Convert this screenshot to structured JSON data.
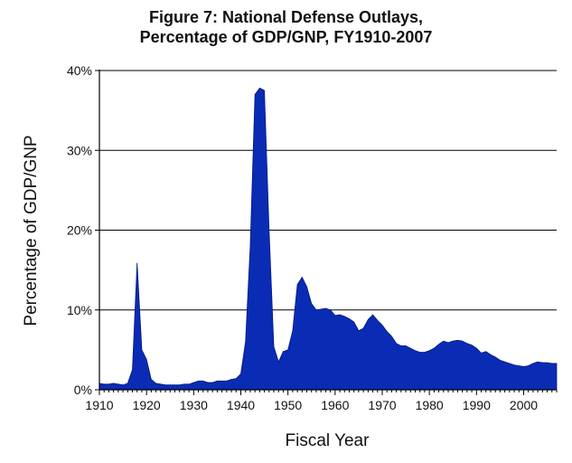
{
  "chart_data": {
    "type": "area",
    "title_line1": "Figure 7: National Defense Outlays,",
    "title_line2": "Percentage of GDP/GNP, FY1910-2007",
    "xlabel": "Fiscal Year",
    "ylabel": "Percentage of GDP/GNP",
    "xlim": [
      1910,
      2007
    ],
    "ylim": [
      0,
      40
    ],
    "x_ticks": [
      1910,
      1920,
      1930,
      1940,
      1950,
      1960,
      1970,
      1980,
      1990,
      2000
    ],
    "y_ticks": [
      0,
      10,
      20,
      30,
      40
    ],
    "y_tick_labels": [
      "0%",
      "10%",
      "20%",
      "30%",
      "40%"
    ],
    "fill_color": "#0a2bb4",
    "edge_color": "#001a80",
    "grid": "horizontal",
    "series": [
      {
        "name": "National Defense Outlays (% of GDP/GNP)",
        "x": [
          1910,
          1911,
          1912,
          1913,
          1914,
          1915,
          1916,
          1917,
          1918,
          1919,
          1920,
          1921,
          1922,
          1923,
          1924,
          1925,
          1926,
          1927,
          1928,
          1929,
          1930,
          1931,
          1932,
          1933,
          1934,
          1935,
          1936,
          1937,
          1938,
          1939,
          1940,
          1941,
          1942,
          1943,
          1944,
          1945,
          1946,
          1947,
          1948,
          1949,
          1950,
          1951,
          1952,
          1953,
          1954,
          1955,
          1956,
          1957,
          1958,
          1959,
          1960,
          1961,
          1962,
          1963,
          1964,
          1965,
          1966,
          1967,
          1968,
          1969,
          1970,
          1971,
          1972,
          1973,
          1974,
          1975,
          1976,
          1977,
          1978,
          1979,
          1980,
          1981,
          1982,
          1983,
          1984,
          1985,
          1986,
          1987,
          1988,
          1989,
          1990,
          1991,
          1992,
          1993,
          1994,
          1995,
          1996,
          1997,
          1998,
          1999,
          2000,
          2001,
          2002,
          2003,
          2004,
          2005,
          2006,
          2007
        ],
        "values": [
          0.8,
          0.7,
          0.7,
          0.8,
          0.7,
          0.6,
          0.8,
          2.5,
          15.9,
          5.0,
          3.8,
          1.3,
          0.8,
          0.7,
          0.6,
          0.6,
          0.6,
          0.6,
          0.7,
          0.7,
          0.9,
          1.1,
          1.1,
          0.9,
          0.9,
          1.1,
          1.1,
          1.1,
          1.3,
          1.4,
          2.0,
          6.0,
          18.0,
          37.0,
          37.8,
          37.5,
          20.0,
          5.4,
          3.5,
          4.8,
          5.0,
          7.4,
          13.2,
          14.1,
          12.9,
          10.8,
          10.0,
          10.1,
          10.2,
          10.0,
          9.3,
          9.4,
          9.2,
          8.9,
          8.5,
          7.4,
          7.7,
          8.8,
          9.4,
          8.7,
          8.1,
          7.3,
          6.7,
          5.8,
          5.5,
          5.5,
          5.2,
          4.9,
          4.7,
          4.7,
          4.9,
          5.2,
          5.7,
          6.1,
          5.9,
          6.1,
          6.2,
          6.1,
          5.8,
          5.6,
          5.2,
          4.6,
          4.8,
          4.4,
          4.1,
          3.7,
          3.5,
          3.3,
          3.1,
          3.0,
          2.9,
          3.0,
          3.3,
          3.5,
          3.4,
          3.4,
          3.3,
          3.3
        ]
      }
    ]
  }
}
